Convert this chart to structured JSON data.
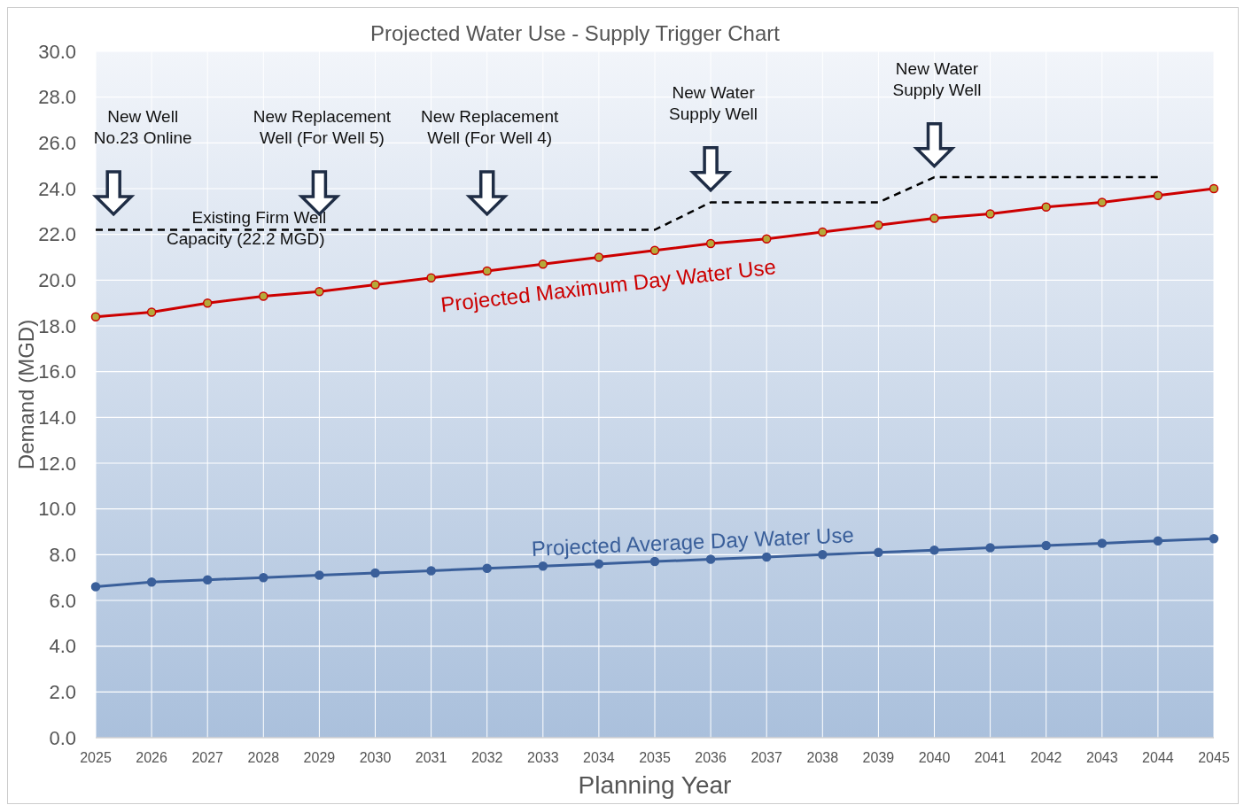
{
  "chart_data": {
    "type": "line",
    "title": "Projected Water Use -  Supply Trigger Chart",
    "xlabel": "Planning Year",
    "ylabel": "Demand (MGD)",
    "x": [
      2025,
      2026,
      2027,
      2028,
      2029,
      2030,
      2031,
      2032,
      2033,
      2034,
      2035,
      2036,
      2037,
      2038,
      2039,
      2040,
      2041,
      2042,
      2043,
      2044,
      2045
    ],
    "xlim": [
      2025,
      2045
    ],
    "xticks": [
      2025,
      2026,
      2027,
      2028,
      2029,
      2030,
      2031,
      2032,
      2033,
      2034,
      2035,
      2036,
      2037,
      2038,
      2039,
      2040,
      2041,
      2042,
      2043,
      2044,
      2045
    ],
    "ylim": [
      0,
      30
    ],
    "yticks": [
      {
        "value": 0,
        "label": "0.0"
      },
      {
        "value": 2,
        "label": "2.0"
      },
      {
        "value": 4,
        "label": "4.0"
      },
      {
        "value": 6,
        "label": "6.0"
      },
      {
        "value": 8,
        "label": "8.0"
      },
      {
        "value": 10,
        "label": "10.0"
      },
      {
        "value": 12,
        "label": "12.0"
      },
      {
        "value": 14,
        "label": "14.0"
      },
      {
        "value": 16,
        "label": "16.0"
      },
      {
        "value": 18,
        "label": "18.0"
      },
      {
        "value": 20,
        "label": "20.0"
      },
      {
        "value": 22,
        "label": "22.0"
      },
      {
        "value": 24,
        "label": "24.0"
      },
      {
        "value": 26,
        "label": "26.0"
      },
      {
        "value": 28,
        "label": "28.0"
      },
      {
        "value": 30,
        "label": "30.0"
      }
    ],
    "grid": true,
    "series": [
      {
        "name": "Projected Maximum Day Water Use",
        "color": "#cc0000",
        "marker": "circle",
        "line_style": "solid",
        "values": [
          18.4,
          18.6,
          19.0,
          19.3,
          19.5,
          19.8,
          20.1,
          20.4,
          20.7,
          21.0,
          21.3,
          21.6,
          21.8,
          22.1,
          22.4,
          22.7,
          22.9,
          23.2,
          23.4,
          23.7,
          24.0
        ]
      },
      {
        "name": "Projected Average Day Water Use",
        "color": "#3a5f9a",
        "marker": "circle",
        "line_style": "solid",
        "values": [
          6.6,
          6.8,
          6.9,
          7.0,
          7.1,
          7.2,
          7.3,
          7.4,
          7.5,
          7.6,
          7.7,
          7.8,
          7.9,
          8.0,
          8.1,
          8.2,
          8.3,
          8.4,
          8.5,
          8.6,
          8.7
        ]
      },
      {
        "color": "#000000",
        "marker": "none",
        "line_style": "dashed",
        "x": [
          2025,
          2035,
          2036,
          2039,
          2040,
          2044
        ],
        "values": [
          22.2,
          22.2,
          23.4,
          23.4,
          24.5,
          24.5
        ]
      }
    ],
    "annotations": [
      {
        "text": "Existing Firm Well\nCapacity (22.2 MGD)",
        "x": 2028,
        "y": 22.2
      },
      "New Well\nNo.23 Online",
      "New Replacement\nWell (For Well 5)",
      "New Replacement\nWell (For Well 4)",
      "New Water\nSupply Well",
      "New Water\nSupply Well"
    ]
  }
}
